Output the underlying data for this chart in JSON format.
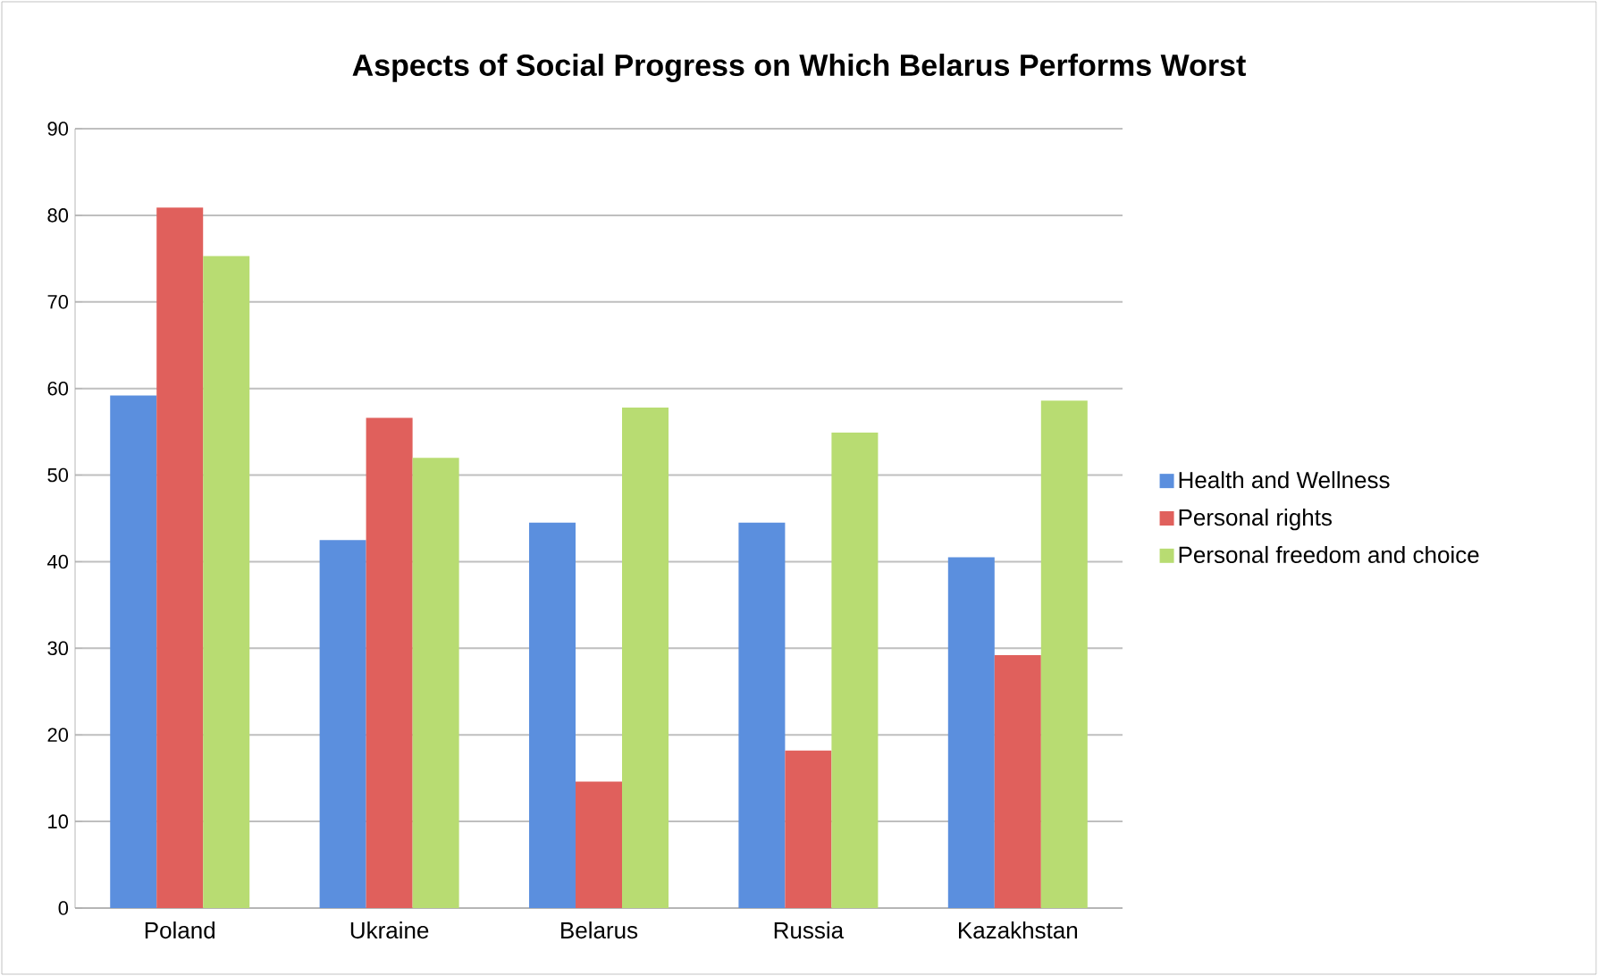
{
  "chart_data": {
    "type": "bar",
    "title": "Aspects of Social Progress on Which Belarus Performs Worst",
    "categories": [
      "Poland",
      "Ukraine",
      "Belarus",
      "Russia",
      "Kazakhstan"
    ],
    "series": [
      {
        "name": "Health and Wellness",
        "color": "#5b8fde",
        "values": [
          59.2,
          42.5,
          44.5,
          44.5,
          40.5
        ]
      },
      {
        "name": "Personal rights",
        "color": "#e0605c",
        "values": [
          80.9,
          56.6,
          14.6,
          18.2,
          29.2
        ]
      },
      {
        "name": "Personal freedom and choice",
        "color": "#b8dc72",
        "values": [
          75.3,
          52.0,
          57.8,
          54.9,
          58.6
        ]
      }
    ],
    "ylim": [
      0,
      90
    ],
    "yticks": [
      0,
      10,
      20,
      30,
      40,
      50,
      60,
      70,
      80,
      90
    ],
    "grid": "y",
    "legend": "right"
  }
}
